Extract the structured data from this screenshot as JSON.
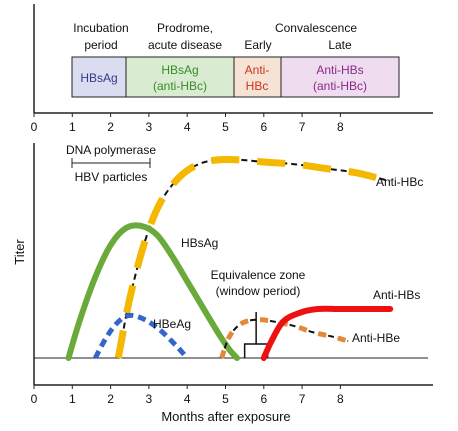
{
  "chart_data": [
    {
      "type": "timeline",
      "phases": [
        {
          "name": "Incubation period",
          "start": 1.0,
          "end": 2.55
        },
        {
          "name": "Prodrome, acute disease",
          "start": 2.55,
          "end": 5.3
        },
        {
          "name": "Convalescence Early",
          "start": 5.3,
          "end": 6.25
        },
        {
          "name": "Convalescence Late",
          "start": 6.25,
          "end": 9.3
        }
      ],
      "phase_headers": {
        "incubation_1": "Incubation",
        "incubation_2": "period",
        "prodrome_1": "Prodrome,",
        "prodrome_2": "acute disease",
        "convalescence": "Convalescence",
        "early": "Early",
        "late": "Late"
      },
      "boxes": {
        "hbsag": "HBsAg",
        "hbsag2_line1": "HBsAg",
        "hbsag2_line2": "(anti-HBc)",
        "antihbc_line1": "Anti-",
        "antihbc_line2": "HBc",
        "antihbs_line1": "Anti-HBs",
        "antihbs_line2": "(anti-HBc)"
      },
      "box_colors": {
        "hbsag": "#dcdcf0",
        "hbsag2": "#d9ecd2",
        "antihbc": "#f5e3d5",
        "antihbs": "#efdcef"
      },
      "x_ticks": [
        "0",
        "1",
        "2",
        "3",
        "4",
        "5",
        "6",
        "7",
        "8"
      ]
    },
    {
      "type": "line",
      "xlabel": "Months after exposure",
      "ylabel": "Titer",
      "xlim": [
        0,
        10
      ],
      "ylim": [
        0,
        100
      ],
      "x_ticks": [
        "0",
        "1",
        "2",
        "3",
        "4",
        "5",
        "6",
        "7",
        "8"
      ],
      "series": [
        {
          "name": "Anti-HBc",
          "color": "#f5b800",
          "style": "dash-black-gold",
          "x": [
            2.2,
            2.5,
            2.9,
            3.3,
            3.8,
            4.3,
            4.8,
            5.4,
            6.0,
            6.8,
            7.6,
            8.4,
            9.3
          ],
          "y": [
            0,
            28,
            55,
            73,
            85,
            91,
            93,
            93,
            92,
            91,
            89,
            87,
            83
          ]
        },
        {
          "name": "HBsAg",
          "color": "#6aaa3a",
          "style": "solid",
          "x": [
            0.9,
            1.2,
            1.6,
            2.0,
            2.4,
            2.8,
            3.2,
            3.6,
            4.0,
            4.4,
            4.8,
            5.1,
            5.3
          ],
          "y": [
            0,
            18,
            38,
            53,
            61,
            62,
            58,
            48,
            36,
            24,
            12,
            4,
            0
          ]
        },
        {
          "name": "HBeAg",
          "color": "#3366cc",
          "style": "dotted",
          "x": [
            1.6,
            1.9,
            2.2,
            2.5,
            2.9,
            3.3,
            3.7,
            4.0
          ],
          "y": [
            0,
            10,
            17,
            20,
            18,
            13,
            6,
            0
          ]
        },
        {
          "name": "Anti-HBe",
          "color": "#e08a3a",
          "style": "dash-black-orange",
          "x": [
            4.9,
            5.1,
            5.4,
            5.8,
            6.3,
            6.8,
            7.3,
            7.8,
            8.2
          ],
          "y": [
            0,
            10,
            16,
            18,
            17,
            15,
            12,
            10,
            8
          ]
        },
        {
          "name": "Anti-HBs",
          "color": "#ee1111",
          "style": "solid",
          "x": [
            6.0,
            6.2,
            6.5,
            6.9,
            7.4,
            8.0,
            8.6,
            9.3
          ],
          "y": [
            0,
            8,
            17,
            21,
            23,
            23,
            23,
            23
          ]
        }
      ],
      "annotations": {
        "dna_polymerase": "DNA polymerase",
        "hbv_particles": "HBV particles",
        "equivalence_1": "Equivalence zone",
        "equivalence_2": "(window period)",
        "window_start": 5.5,
        "window_end": 6.1
      }
    }
  ]
}
